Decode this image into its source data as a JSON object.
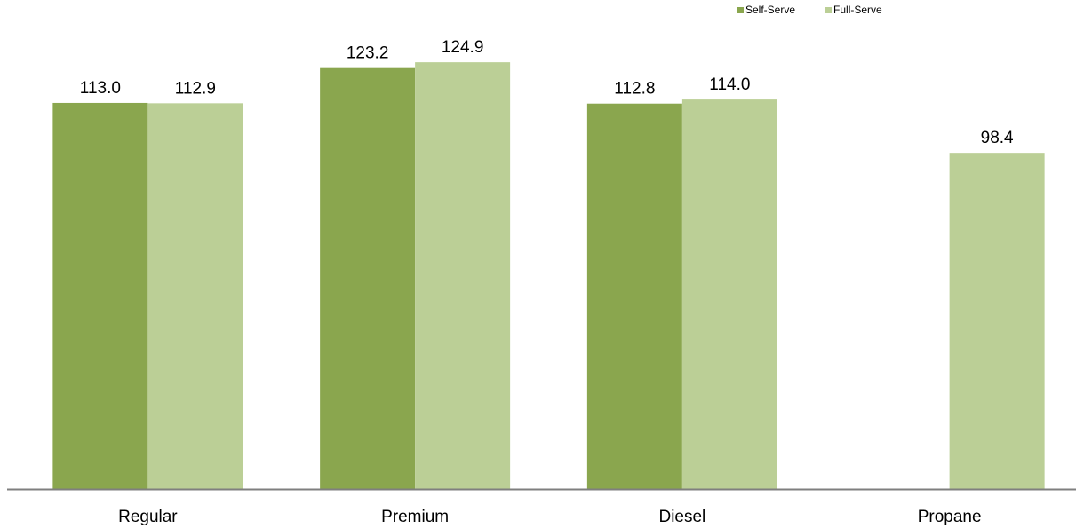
{
  "chart_data": {
    "type": "bar",
    "categories": [
      "Regular",
      "Premium",
      "Diesel",
      "Propane"
    ],
    "series": [
      {
        "name": "Self-Serve",
        "values": [
          113.0,
          123.2,
          112.8,
          null
        ],
        "color": "#8aa64e"
      },
      {
        "name": "Full-Serve",
        "values": [
          112.9,
          124.9,
          114.0,
          98.4
        ],
        "color": "#bbcf96"
      }
    ],
    "ylim": [
      0,
      140
    ],
    "grid": false,
    "legend_position": "top-right"
  }
}
